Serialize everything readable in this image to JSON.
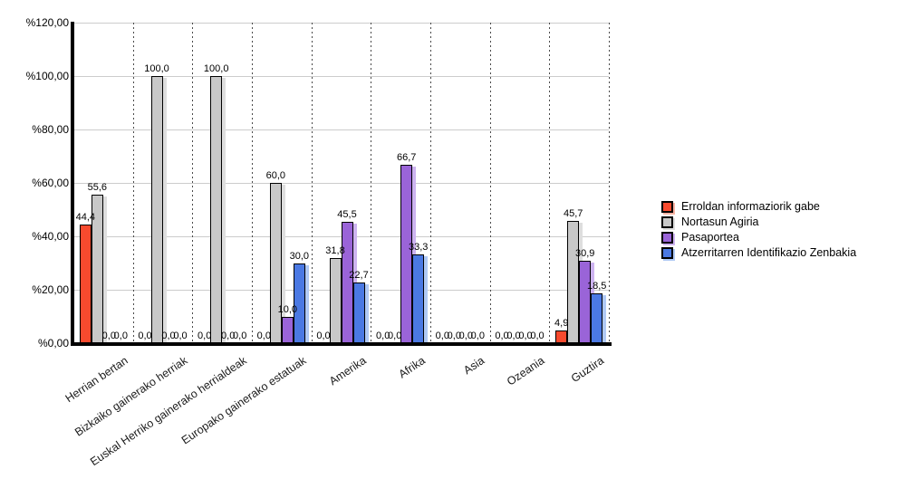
{
  "chart_data": {
    "type": "bar",
    "title": "",
    "categories": [
      "Herrian bertan",
      "Bizkaiko gainerako herriak",
      "Euskal Herriko gainerako herrialdeak",
      "Europako gainerako estatuak",
      "Amerika",
      "Afrika",
      "Asia",
      "Ozeania",
      "Guztira"
    ],
    "series": [
      {
        "name": "Erroldan informaziorik gabe",
        "color": "#f84a2e",
        "shadow_color": "#f7b3a3",
        "values": [
          44.4,
          0.0,
          0.0,
          0.0,
          0.0,
          0.0,
          0.0,
          0.0,
          4.9
        ]
      },
      {
        "name": "Nortasun Agiria",
        "color": "#c8c8c8",
        "shadow_color": "#dedede",
        "values": [
          55.6,
          100.0,
          100.0,
          60.0,
          31.8,
          0.0,
          0.0,
          0.0,
          45.7
        ]
      },
      {
        "name": "Pasaportea",
        "color": "#9a64d8",
        "shadow_color": "#cdb3f0",
        "values": [
          0.0,
          0.0,
          0.0,
          10.0,
          45.5,
          66.7,
          0.0,
          0.0,
          30.9
        ]
      },
      {
        "name": "Atzerritarren Identifikazio Zenbakia",
        "color": "#4b79e3",
        "shadow_color": "#b0c9f5",
        "values": [
          0.0,
          0.0,
          0.0,
          30.0,
          22.7,
          33.3,
          0.0,
          0.0,
          18.5
        ]
      }
    ],
    "y_axis": {
      "ticks": [
        0,
        20,
        40,
        60,
        80,
        100,
        120
      ],
      "tick_prefix": "%",
      "tick_decimals": 2,
      "decimal_separator": ",",
      "ylim": [
        0,
        120
      ]
    },
    "value_label_decimals": 1,
    "grid": true,
    "legend_position": "right"
  }
}
